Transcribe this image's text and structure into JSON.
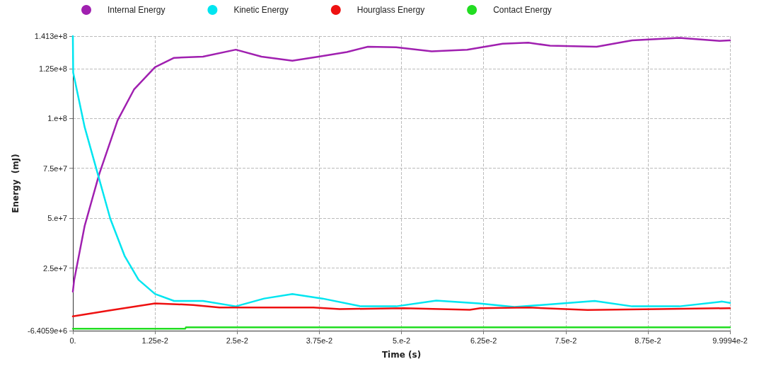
{
  "chart_data": {
    "type": "line",
    "xlabel": "Time (s)",
    "ylabel": "Energy  (mJ)",
    "legend": "top",
    "grid": true,
    "line_style": "solid",
    "xlim": [
      0,
      0.099994
    ],
    "ylim": [
      -6405900,
      141300000
    ],
    "xticks": [
      {
        "value": 0,
        "label": "0."
      },
      {
        "value": 0.0125,
        "label": "1.25e-2"
      },
      {
        "value": 0.025,
        "label": "2.5e-2"
      },
      {
        "value": 0.0375,
        "label": "3.75e-2"
      },
      {
        "value": 0.05,
        "label": "5.e-2"
      },
      {
        "value": 0.0625,
        "label": "6.25e-2"
      },
      {
        "value": 0.075,
        "label": "7.5e-2"
      },
      {
        "value": 0.0875,
        "label": "8.75e-2"
      },
      {
        "value": 0.099994,
        "label": "9.9994e-2"
      }
    ],
    "yticks": [
      {
        "value": -6405900,
        "label": "-6.4059e+6"
      },
      {
        "value": 25000000,
        "label": "2.5e+7"
      },
      {
        "value": 50000000,
        "label": "5.e+7"
      },
      {
        "value": 75000000,
        "label": "7.5e+7"
      },
      {
        "value": 100000000,
        "label": "1.e+8"
      },
      {
        "value": 125000000,
        "label": "1.25e+8"
      },
      {
        "value": 141300000,
        "label": "1.413e+8"
      }
    ],
    "series": [
      {
        "name": "Internal Energy",
        "color": "#a020b0",
        "x": [
          0,
          0.0002,
          0.0018,
          0.004,
          0.0068,
          0.0093,
          0.0125,
          0.0154,
          0.0198,
          0.0248,
          0.0287,
          0.0334,
          0.0374,
          0.0417,
          0.0449,
          0.0492,
          0.0546,
          0.06,
          0.0654,
          0.0693,
          0.0726,
          0.0797,
          0.0851,
          0.0923,
          0.0984,
          0.099994
        ],
        "values": [
          13200000,
          19000000,
          46200000,
          72000000,
          99000000,
          114500000,
          125700000,
          130400000,
          131000000,
          134500000,
          131000000,
          129000000,
          131000000,
          133300000,
          136000000,
          135700000,
          133700000,
          134500000,
          137500000,
          138000000,
          136500000,
          136000000,
          139200000,
          140400000,
          138900000,
          139200000
        ]
      },
      {
        "name": "Kinetic Energy",
        "color": "#00e5f0",
        "x": [
          0,
          5e-05,
          0.0018,
          0.004,
          0.0057,
          0.0079,
          0.01,
          0.0125,
          0.0154,
          0.0198,
          0.0248,
          0.0291,
          0.0334,
          0.038,
          0.0438,
          0.0492,
          0.0553,
          0.0618,
          0.0672,
          0.0794,
          0.0851,
          0.0923,
          0.0988,
          0.099994
        ],
        "values": [
          141300000,
          123000000,
          95600000,
          69700000,
          49700000,
          30900000,
          19100000,
          12000000,
          8500000,
          8500000,
          5800000,
          9700000,
          12000000,
          9700000,
          5800000,
          5800000,
          8700000,
          7300000,
          5500000,
          8500000,
          5800000,
          5800000,
          8200000,
          7500000
        ]
      },
      {
        "name": "Hourglass Energy",
        "color": "#ee1111",
        "x": [
          0,
          0.0057,
          0.0125,
          0.0183,
          0.0223,
          0.0366,
          0.0406,
          0.0503,
          0.0604,
          0.062,
          0.0694,
          0.0783,
          0.0891,
          0.099994
        ],
        "values": [
          800000,
          3800000,
          7300000,
          6500000,
          5200000,
          5200000,
          4400000,
          4900000,
          4100000,
          4900000,
          5200000,
          4000000,
          4400000,
          4900000
        ]
      },
      {
        "name": "Contact Energy",
        "color": "#22dd22",
        "x": [
          0,
          0.0171,
          0.0172,
          0.099994
        ],
        "values": [
          -5400000,
          -5400000,
          -4700000,
          -4700000
        ]
      }
    ]
  }
}
